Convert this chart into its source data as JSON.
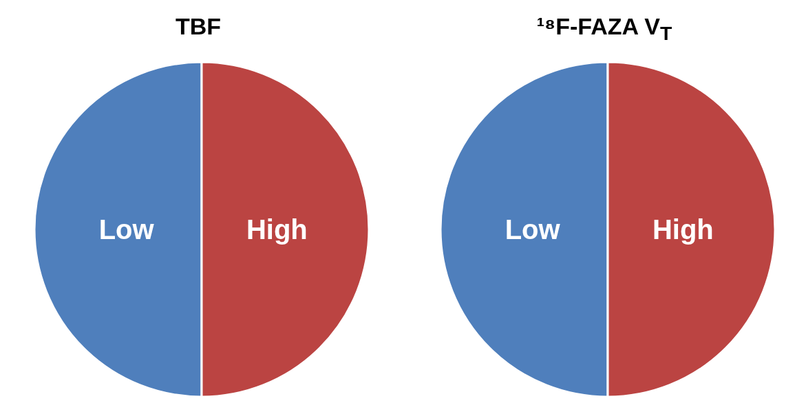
{
  "chart_data": [
    {
      "type": "pie",
      "title": "TBF",
      "categories": [
        "Low",
        "High"
      ],
      "values": [
        50,
        50
      ],
      "colors": [
        "#4f7fbc",
        "#bb4442"
      ]
    },
    {
      "type": "pie",
      "title": "¹⁸F-FAZA V$_{T}$",
      "categories": [
        "Low",
        "High"
      ],
      "values": [
        50,
        50
      ],
      "colors": [
        "#4f7fbc",
        "#bb4442"
      ]
    }
  ]
}
